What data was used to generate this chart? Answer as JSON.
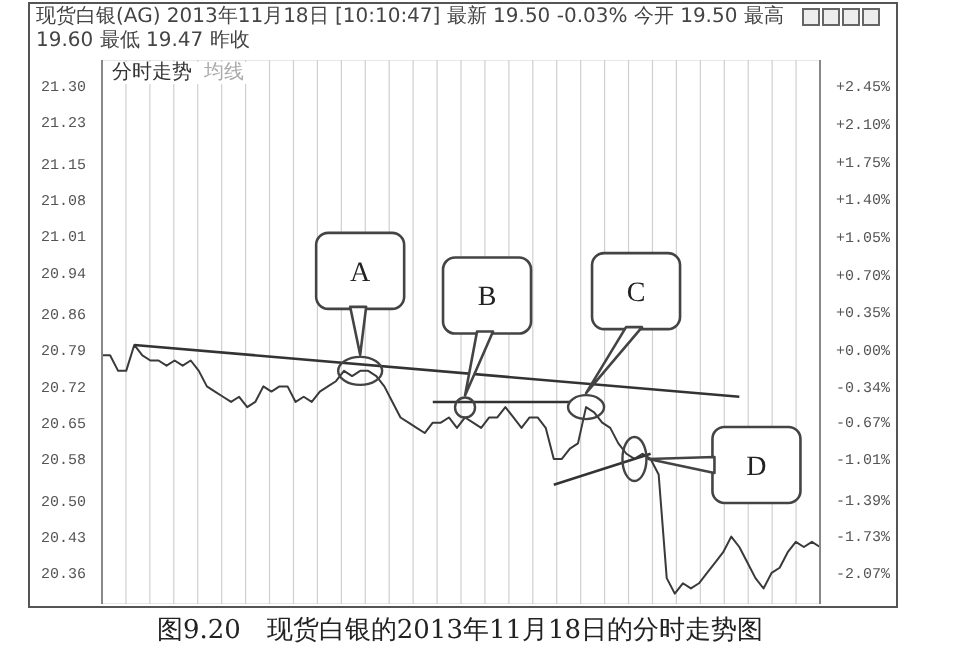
{
  "chart_data": {
    "type": "line",
    "title": "现货白银(AG) 2013年11月18日 [10:10:47] 最新 19.50 -0.03% 今开 19.50 最高 19.60 最低 19.47 昨收",
    "subtitle": "分时走势",
    "categories": [
      null,
      null,
      null,
      null,
      null,
      null,
      null,
      null,
      null,
      null,
      null,
      null,
      null,
      null,
      null,
      null,
      null,
      null,
      null,
      null,
      null,
      null,
      null,
      null,
      null,
      null,
      null,
      null,
      null,
      null,
      null,
      null,
      null,
      null,
      null,
      null,
      null,
      null,
      null,
      null,
      null,
      null,
      null,
      null,
      null,
      null,
      null,
      null,
      null,
      null,
      null,
      null,
      null,
      null,
      null,
      null,
      null,
      null,
      null,
      null,
      null,
      null,
      null,
      null,
      null,
      null,
      null,
      null,
      null,
      null,
      null,
      null,
      null,
      null,
      null,
      null,
      null,
      null,
      null,
      null,
      null,
      null,
      null,
      null,
      null,
      null,
      null,
      null,
      null,
      null
    ],
    "series": [
      {
        "type": "line",
        "color": "#3a3a3a",
        "values": [
          20.78,
          20.78,
          20.75,
          20.75,
          20.8,
          20.78,
          20.77,
          20.77,
          20.76,
          20.77,
          20.76,
          20.77,
          20.75,
          20.72,
          20.71,
          20.7,
          20.69,
          20.7,
          20.68,
          20.69,
          20.72,
          20.71,
          20.72,
          20.72,
          20.69,
          20.7,
          20.69,
          20.71,
          20.72,
          20.73,
          20.75,
          20.74,
          20.75,
          20.75,
          20.74,
          20.72,
          20.69,
          20.66,
          20.65,
          20.64,
          20.63,
          20.65,
          20.65,
          20.66,
          20.64,
          20.66,
          20.65,
          20.64,
          20.66,
          20.66,
          20.68,
          20.66,
          20.64,
          20.66,
          20.66,
          20.64,
          20.58,
          20.58,
          20.6,
          20.61,
          20.68,
          20.67,
          20.65,
          20.64,
          20.61,
          20.59,
          20.58,
          20.59,
          20.58,
          20.55,
          20.35,
          20.32,
          20.34,
          20.33,
          20.34,
          20.36,
          20.38,
          20.4,
          20.43,
          20.41,
          20.38,
          20.35,
          20.33,
          20.36,
          20.37,
          20.4,
          20.42,
          20.41,
          20.42,
          20.41
        ]
      },
      {
        "type": "line",
        "color": "#333333",
        "values": [
          null,
          null,
          null,
          null,
          20.8,
          null,
          null,
          null,
          null,
          null,
          null,
          null,
          null,
          null,
          null,
          null,
          null,
          null,
          null,
          null,
          null,
          null,
          null,
          null,
          null,
          null,
          null,
          null,
          null,
          null,
          null,
          null,
          null,
          null,
          null,
          null,
          null,
          null,
          null,
          null,
          null,
          null,
          null,
          null,
          null,
          null,
          null,
          null,
          null,
          null,
          null,
          null,
          null,
          null,
          null,
          null,
          null,
          null,
          null,
          null,
          null,
          null,
          null,
          null,
          null,
          null,
          null,
          null,
          null,
          null,
          null,
          null,
          null,
          null,
          null,
          null,
          null,
          null,
          null,
          20.7,
          null,
          null,
          null,
          null,
          null,
          null,
          null,
          null,
          null,
          null
        ]
      },
      {
        "type": "line",
        "color": "#333333",
        "values": [
          null,
          null,
          null,
          null,
          null,
          null,
          null,
          null,
          null,
          null,
          null,
          null,
          null,
          null,
          null,
          null,
          null,
          null,
          null,
          null,
          null,
          null,
          null,
          null,
          null,
          null,
          null,
          null,
          null,
          null,
          null,
          null,
          null,
          null,
          null,
          null,
          null,
          null,
          null,
          null,
          null,
          20.69,
          null,
          null,
          null,
          null,
          null,
          null,
          null,
          null,
          null,
          null,
          null,
          null,
          null,
          null,
          null,
          null,
          20.69,
          null,
          null,
          null,
          null,
          null,
          null,
          null,
          null,
          null,
          null,
          null,
          null,
          null,
          null,
          null,
          null,
          null,
          null,
          null,
          null,
          null,
          null,
          null,
          null,
          null,
          null,
          null,
          null,
          null,
          null,
          null
        ]
      },
      {
        "type": "line",
        "color": "#333333",
        "values": [
          null,
          null,
          null,
          null,
          null,
          null,
          null,
          null,
          null,
          null,
          null,
          null,
          null,
          null,
          null,
          null,
          null,
          null,
          null,
          null,
          null,
          null,
          null,
          null,
          null,
          null,
          null,
          null,
          null,
          null,
          null,
          null,
          null,
          null,
          null,
          null,
          null,
          null,
          null,
          null,
          null,
          null,
          null,
          null,
          null,
          null,
          null,
          null,
          null,
          null,
          null,
          null,
          null,
          null,
          null,
          null,
          20.53,
          null,
          null,
          null,
          null,
          null,
          null,
          null,
          null,
          null,
          null,
          null,
          20.59,
          null,
          null,
          null,
          null,
          null,
          null,
          null,
          null,
          null,
          null,
          null,
          null,
          null,
          null,
          null,
          null,
          null,
          null,
          null,
          null,
          null
        ]
      }
    ],
    "ylim": [
      20.3,
      21.35
    ],
    "yticks": [
      {
        "value": 21.3,
        "label": "21.30"
      },
      21.23,
      21.15,
      21.08,
      21.01,
      20.94,
      20.86,
      20.79,
      20.72,
      20.65,
      20.58,
      {
        "value": 20.5,
        "label": "20.50"
      },
      20.43,
      20.36
    ],
    "y2lim": [
      -2.36,
      2.69
    ],
    "y2ticks": [
      {
        "value": 2.45,
        "label": "+2.45%"
      },
      {
        "value": 2.1,
        "label": "+2.10%"
      },
      {
        "value": 1.75,
        "label": "+1.75%"
      },
      {
        "value": 1.4,
        "label": "+1.40%"
      },
      {
        "value": 1.05,
        "label": "+1.05%"
      },
      {
        "value": 0.7,
        "label": "+0.70%"
      },
      {
        "value": 0.35,
        "label": "+0.35%"
      },
      {
        "value": 0,
        "label": "+0.00%"
      },
      {
        "value": -0.34,
        "label": "-0.34%"
      },
      {
        "value": -0.67,
        "label": "-0.67%"
      },
      {
        "value": -1.01,
        "label": "-1.01%"
      },
      {
        "value": -1.39,
        "label": "-1.39%"
      },
      {
        "value": -1.73,
        "label": "-1.73%"
      },
      {
        "value": -2.07,
        "label": "-2.07%"
      }
    ],
    "grid": true,
    "marker": "none",
    "line_style": "solid",
    "annotations": [
      "均线",
      "A",
      "B",
      "C",
      "D",
      "图9.20　现货白银的2013年11月18日的分时走势图"
    ]
  }
}
